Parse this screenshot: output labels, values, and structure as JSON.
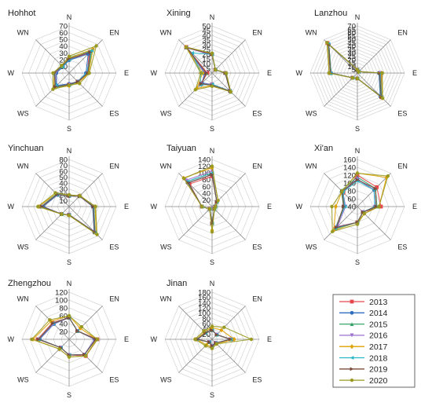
{
  "chart_data": {
    "type": "radar",
    "directions": [
      "N",
      "EN",
      "E",
      "ES",
      "S",
      "WS",
      "W",
      "WN"
    ],
    "legend": {
      "placement": "bottom-right",
      "entries": [
        {
          "name": "2013",
          "color": "#e8484a",
          "marker": "square"
        },
        {
          "name": "2014",
          "color": "#2f6fbf",
          "marker": "circle"
        },
        {
          "name": "2015",
          "color": "#3aa36a",
          "marker": "triangle-up"
        },
        {
          "name": "2016",
          "color": "#9b6fd0",
          "marker": "triangle-down"
        },
        {
          "name": "2017",
          "color": "#e0a000",
          "marker": "diamond"
        },
        {
          "name": "2018",
          "color": "#29b6c7",
          "marker": "triangle-left"
        },
        {
          "name": "2019",
          "color": "#7a4b3a",
          "marker": "triangle-right"
        },
        {
          "name": "2020",
          "color": "#9a9a22",
          "marker": "hexagon"
        }
      ]
    },
    "panels": [
      {
        "city": "Hohhot",
        "rmin": 0,
        "rmax": 70,
        "ticks": [
          10,
          20,
          30,
          40,
          50,
          60,
          70
        ],
        "series": [
          [
            20,
            42,
            27,
            18,
            17,
            27,
            20,
            14
          ],
          [
            19,
            40,
            25,
            18,
            16,
            26,
            19,
            13
          ],
          [
            23,
            48,
            28,
            19,
            18,
            30,
            21,
            14
          ],
          [
            21,
            45,
            27,
            19,
            17,
            28,
            20,
            15
          ],
          [
            22,
            50,
            29,
            20,
            19,
            32,
            22,
            15
          ],
          [
            20,
            47,
            26,
            18,
            18,
            27,
            23,
            14
          ],
          [
            21,
            44,
            28,
            18,
            17,
            29,
            22,
            15
          ],
          [
            25,
            57,
            30,
            22,
            18,
            34,
            24,
            16
          ]
        ]
      },
      {
        "city": "Xining",
        "rmin": 0,
        "rmax": 50,
        "ticks": [
          5,
          10,
          15,
          20,
          25,
          30,
          35,
          40,
          45,
          50
        ],
        "series": [
          [
            20,
            5,
            14,
            27,
            12,
            17,
            5,
            39
          ],
          [
            20,
            5,
            14,
            27,
            12,
            15,
            8,
            38
          ],
          [
            20,
            5,
            15,
            28,
            12,
            16,
            6,
            39
          ],
          [
            19,
            5,
            14,
            27,
            12,
            16,
            7,
            38
          ],
          [
            20,
            5,
            15,
            28,
            13,
            23,
            10,
            39
          ],
          [
            20,
            5,
            14,
            27,
            12,
            18,
            12,
            30
          ],
          [
            20,
            5,
            14,
            27,
            13,
            16,
            6,
            38
          ],
          [
            21,
            5,
            15,
            28,
            14,
            25,
            12,
            39
          ]
        ]
      },
      {
        "city": "Lanzhou",
        "rmin": 0,
        "rmax": 70,
        "ticks": [
          5,
          10,
          15,
          20,
          25,
          30,
          35,
          40,
          45,
          50,
          55,
          60,
          65,
          70
        ],
        "series": [
          [
            5,
            3,
            35,
            51,
            8,
            10,
            40,
            63
          ],
          [
            5,
            3,
            32,
            48,
            8,
            10,
            39,
            60
          ],
          [
            5,
            3,
            33,
            49,
            8,
            10,
            39,
            60
          ],
          [
            5,
            3,
            34,
            50,
            8,
            10,
            40,
            61
          ],
          [
            5,
            3,
            36,
            52,
            8,
            10,
            42,
            62
          ],
          [
            5,
            3,
            34,
            51,
            8,
            10,
            40,
            61
          ],
          [
            5,
            3,
            33,
            50,
            8,
            10,
            40,
            60
          ],
          [
            5,
            3,
            37,
            53,
            8,
            10,
            42,
            64
          ]
        ]
      },
      {
        "city": "Yinchuan",
        "rmin": 0,
        "rmax": 80,
        "ticks": [
          10,
          20,
          30,
          40,
          50,
          60,
          70,
          80
        ],
        "series": [
          [
            18,
            25,
            42,
            62,
            14,
            18,
            48,
            30
          ],
          [
            18,
            25,
            40,
            60,
            14,
            18,
            44,
            28
          ],
          [
            19,
            25,
            42,
            62,
            14,
            18,
            47,
            30
          ],
          [
            18,
            25,
            41,
            61,
            14,
            18,
            46,
            29
          ],
          [
            19,
            26,
            44,
            65,
            15,
            18,
            52,
            31
          ],
          [
            18,
            25,
            42,
            62,
            14,
            18,
            47,
            30
          ],
          [
            18,
            25,
            41,
            61,
            14,
            18,
            46,
            29
          ],
          [
            20,
            26,
            45,
            67,
            15,
            18,
            53,
            33
          ]
        ]
      },
      {
        "city": "Taiyuan",
        "rmin": 0,
        "rmax": 140,
        "ticks": [
          20,
          40,
          60,
          80,
          100,
          120,
          140
        ],
        "series": [
          [
            90,
            20,
            10,
            10,
            50,
            10,
            30,
            95
          ],
          [
            95,
            20,
            10,
            10,
            50,
            10,
            30,
            100
          ],
          [
            100,
            20,
            10,
            10,
            50,
            10,
            30,
            105
          ],
          [
            105,
            20,
            10,
            10,
            55,
            10,
            30,
            110
          ],
          [
            115,
            25,
            10,
            10,
            70,
            10,
            30,
            120
          ],
          [
            100,
            20,
            10,
            10,
            50,
            10,
            30,
            105
          ],
          [
            95,
            20,
            10,
            10,
            50,
            10,
            30,
            100
          ],
          [
            120,
            25,
            10,
            10,
            75,
            10,
            30,
            118
          ]
        ]
      },
      {
        "city": "Xi'an",
        "rmin": 40,
        "rmax": 160,
        "ticks": [
          40,
          60,
          80,
          100,
          120,
          140,
          160
        ],
        "series": [
          [
            120,
            110,
            100,
            60,
            80,
            120,
            75,
            90
          ],
          [
            110,
            100,
            85,
            60,
            80,
            115,
            75,
            95
          ],
          [
            115,
            105,
            90,
            60,
            80,
            118,
            75,
            98
          ],
          [
            110,
            100,
            85,
            60,
            80,
            112,
            70,
            92
          ],
          [
            125,
            145,
            95,
            65,
            80,
            125,
            95,
            95
          ],
          [
            105,
            100,
            85,
            60,
            80,
            120,
            72,
            92
          ],
          [
            108,
            105,
            88,
            60,
            80,
            115,
            75,
            95
          ],
          [
            125,
            150,
            95,
            65,
            85,
            130,
            105,
            95
          ]
        ]
      },
      {
        "city": "Zhengzhou",
        "rmin": 0,
        "rmax": 120,
        "ticks": [
          20,
          40,
          60,
          80,
          100,
          120
        ],
        "series": [
          [
            55,
            30,
            72,
            60,
            40,
            30,
            80,
            60
          ],
          [
            55,
            30,
            65,
            55,
            40,
            30,
            75,
            55
          ],
          [
            55,
            30,
            68,
            55,
            40,
            30,
            78,
            58
          ],
          [
            55,
            30,
            65,
            55,
            40,
            30,
            77,
            56
          ],
          [
            60,
            40,
            70,
            60,
            45,
            35,
            92,
            65
          ],
          [
            55,
            30,
            68,
            55,
            40,
            30,
            78,
            58
          ],
          [
            55,
            30,
            68,
            55,
            40,
            30,
            78,
            58
          ],
          [
            60,
            45,
            72,
            60,
            45,
            35,
            95,
            70
          ]
        ]
      },
      {
        "city": "Jinan",
        "rmin": 0,
        "rmax": 180,
        "ticks": [
          20,
          40,
          60,
          80,
          100,
          120,
          140,
          160,
          180
        ],
        "series": [
          [
            35,
            25,
            75,
            20,
            25,
            15,
            60,
            35
          ],
          [
            35,
            25,
            70,
            20,
            25,
            15,
            55,
            35
          ],
          [
            35,
            25,
            72,
            20,
            25,
            15,
            58,
            35
          ],
          [
            35,
            25,
            70,
            20,
            25,
            15,
            55,
            35
          ],
          [
            45,
            50,
            85,
            25,
            30,
            30,
            60,
            40
          ],
          [
            35,
            25,
            72,
            20,
            25,
            15,
            58,
            35
          ],
          [
            35,
            25,
            70,
            20,
            25,
            15,
            56,
            35
          ],
          [
            50,
            65,
            150,
            25,
            35,
            35,
            65,
            45
          ]
        ]
      }
    ]
  }
}
